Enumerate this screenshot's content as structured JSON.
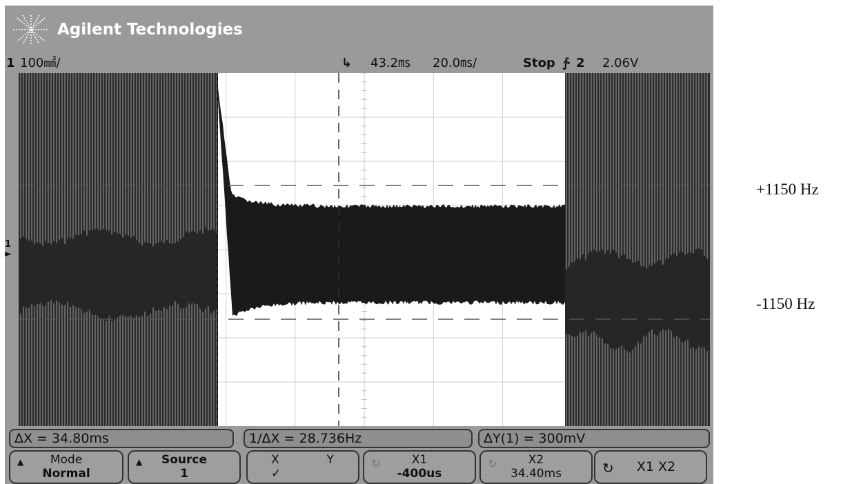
{
  "brand": {
    "name": "Agilent Technologies",
    "logo_icon": "starburst-icon"
  },
  "status": {
    "channel": "1",
    "volts_per_div": "100㎟/",
    "trigger_marker": "↳",
    "delay": "43.2㎳",
    "time_per_div": "20.0㎳/",
    "run_state": "Stop",
    "trigger_slope": "∱",
    "trigger_channel": "2",
    "trigger_level": "2.06V"
  },
  "waveform": {
    "ch1_marker": "1",
    "trace_color": "#1a1a1a"
  },
  "measurements": {
    "delta_x": "ΔX = 34.80ms",
    "inv_delta_x": "1/ΔX = 28.736Hz",
    "delta_y": "ΔY(1) = 300mV"
  },
  "softkeys": {
    "mode": {
      "title": "Mode",
      "value": "Normal"
    },
    "source": {
      "title": "Source",
      "value": "1"
    },
    "xy": {
      "x": "X",
      "y": "Y",
      "check": "✓"
    },
    "x1": {
      "title": "X1",
      "value": "-400us"
    },
    "x2": {
      "title": "X2",
      "value": "34.40ms"
    },
    "x1x2": {
      "label": "X1  X2"
    }
  },
  "annotations": {
    "upper": "+1150 Hz",
    "lower": "-1150 Hz"
  }
}
